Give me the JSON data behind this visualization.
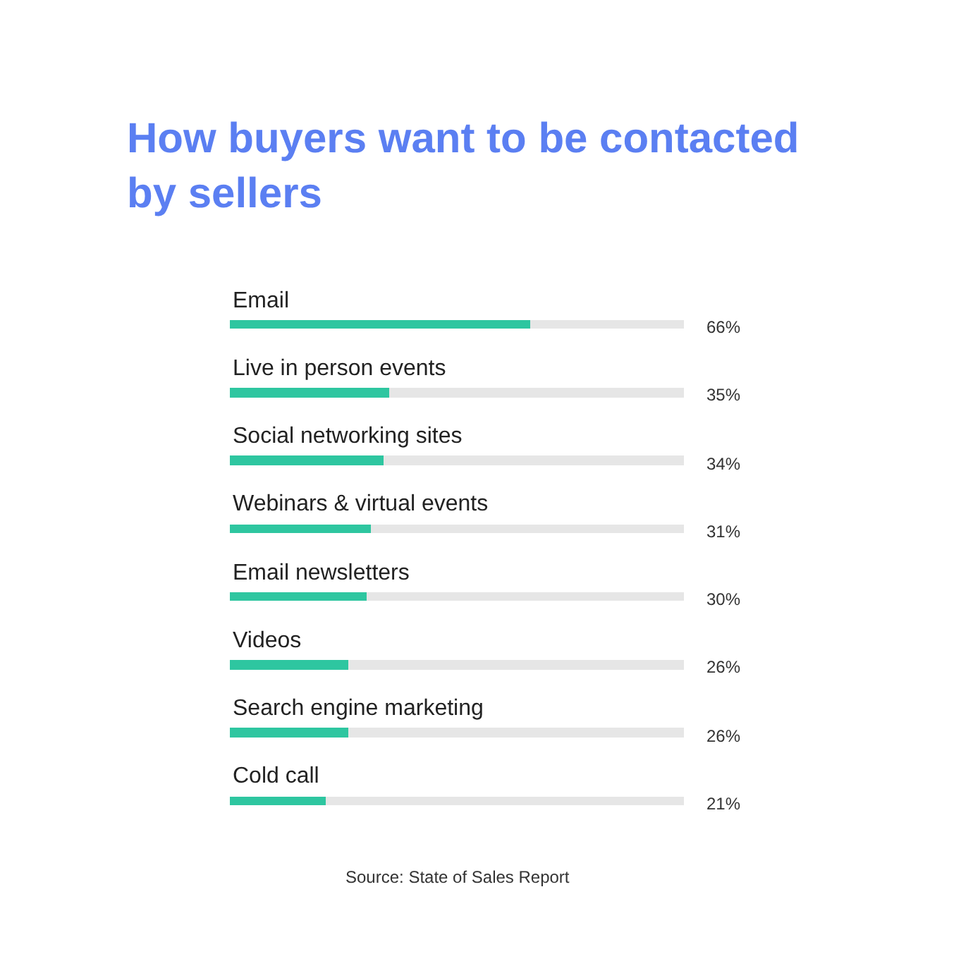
{
  "chart_data": {
    "type": "bar",
    "orientation": "horizontal",
    "stacked": true,
    "title": "How buyers want to be contacted by sellers",
    "categories": [
      "Email",
      "Live in person events",
      "Social networking sites",
      "Webinars & virtual events",
      "Email newsletters",
      "Videos",
      "Search engine marketing",
      "Cold call"
    ],
    "series": [
      {
        "color": "#2ec6a0",
        "values": [
          66,
          35,
          34,
          31,
          30,
          26,
          26,
          21
        ],
        "value_labels": [
          "66%",
          "35%",
          "34%",
          "31%",
          "30%",
          "26%",
          "26%",
          "21%"
        ]
      },
      {
        "color": "#e6e6e6",
        "values": [
          34,
          65,
          66,
          69,
          70,
          74,
          74,
          79
        ]
      }
    ],
    "xlim": [
      0,
      100
    ],
    "tick_labels": false,
    "annotations": [
      "Source: State of Sales Report"
    ]
  }
}
